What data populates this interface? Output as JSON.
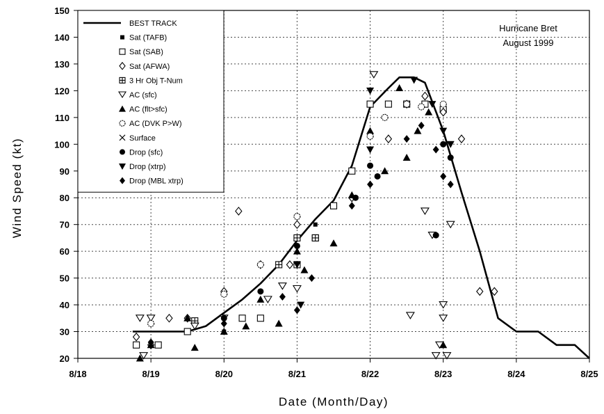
{
  "chart_data": {
    "type": "scatter",
    "title": "",
    "annotation": [
      "Hurricane Bret",
      "August 1999"
    ],
    "xlabel": "Date (Month/Day)",
    "ylabel": "Wind Speed (kt)",
    "xlim": [
      18,
      25
    ],
    "ylim": [
      20,
      150
    ],
    "x_tick_labels": [
      "8/18",
      "8/19",
      "8/20",
      "8/21",
      "8/22",
      "8/23",
      "8/24",
      "8/25"
    ],
    "y_ticks": [
      20,
      30,
      40,
      50,
      60,
      70,
      80,
      90,
      100,
      110,
      120,
      130,
      140,
      150
    ],
    "grid": true,
    "legend_position": "top-left",
    "series": [
      {
        "name": "BEST TRACK",
        "marker": "line",
        "points": [
          [
            18.75,
            30
          ],
          [
            19.0,
            30
          ],
          [
            19.25,
            30
          ],
          [
            19.5,
            30
          ],
          [
            19.75,
            32
          ],
          [
            20.0,
            37
          ],
          [
            20.25,
            42
          ],
          [
            20.5,
            48
          ],
          [
            20.75,
            55
          ],
          [
            21.0,
            64
          ],
          [
            21.25,
            72
          ],
          [
            21.5,
            79
          ],
          [
            21.75,
            92
          ],
          [
            22.0,
            114
          ],
          [
            22.25,
            121
          ],
          [
            22.4,
            125
          ],
          [
            22.6,
            125
          ],
          [
            22.75,
            123
          ],
          [
            23.0,
            105
          ],
          [
            23.25,
            82
          ],
          [
            23.5,
            60
          ],
          [
            23.75,
            35
          ],
          [
            24.0,
            30
          ],
          [
            24.3,
            30
          ],
          [
            24.55,
            25
          ],
          [
            24.8,
            25
          ],
          [
            25.0,
            20
          ]
        ]
      },
      {
        "name": "Sat (TAFB)",
        "marker": "small-square",
        "points": [
          [
            18.8,
            25
          ],
          [
            19.0,
            25
          ],
          [
            19.5,
            30
          ],
          [
            20.0,
            30
          ],
          [
            20.25,
            35
          ],
          [
            20.5,
            45
          ],
          [
            21.0,
            65
          ],
          [
            21.25,
            70
          ],
          [
            21.5,
            77
          ],
          [
            21.75,
            90
          ],
          [
            22.0,
            115
          ],
          [
            22.25,
            115
          ],
          [
            22.5,
            115
          ],
          [
            22.75,
            115
          ],
          [
            23.0,
            115
          ]
        ]
      },
      {
        "name": "Sat (SAB)",
        "marker": "open-square",
        "points": [
          [
            18.8,
            25
          ],
          [
            19.1,
            25
          ],
          [
            19.5,
            30
          ],
          [
            20.25,
            35
          ],
          [
            20.5,
            35
          ],
          [
            21.0,
            55
          ],
          [
            21.25,
            65
          ],
          [
            21.5,
            77
          ],
          [
            21.75,
            90
          ],
          [
            22.0,
            115
          ],
          [
            22.25,
            115
          ],
          [
            22.5,
            115
          ],
          [
            22.75,
            115
          ],
          [
            23.0,
            113
          ]
        ]
      },
      {
        "name": "Sat (AFWA)",
        "marker": "open-diamond",
        "points": [
          [
            18.8,
            28
          ],
          [
            19.0,
            25
          ],
          [
            19.25,
            35
          ],
          [
            19.5,
            35
          ],
          [
            20.0,
            45
          ],
          [
            20.2,
            75
          ],
          [
            20.5,
            55
          ],
          [
            20.9,
            55
          ],
          [
            21.0,
            70
          ],
          [
            21.75,
            80
          ],
          [
            22.25,
            102
          ],
          [
            22.5,
            115
          ],
          [
            22.75,
            118
          ],
          [
            23.0,
            112
          ],
          [
            23.25,
            102
          ],
          [
            23.5,
            45
          ],
          [
            23.7,
            45
          ]
        ]
      },
      {
        "name": "3 Hr Obj T-Num",
        "marker": "boxed-plus",
        "points": [
          [
            19.6,
            34
          ],
          [
            20.75,
            55
          ],
          [
            21.0,
            65
          ],
          [
            21.25,
            65
          ]
        ]
      },
      {
        "name": "AC (sfc)",
        "marker": "open-triangle-down",
        "points": [
          [
            18.85,
            35
          ],
          [
            19.0,
            35
          ],
          [
            18.9,
            21
          ],
          [
            19.6,
            32
          ],
          [
            20.0,
            35
          ],
          [
            20.6,
            42
          ],
          [
            20.8,
            47
          ],
          [
            21.0,
            46
          ],
          [
            22.05,
            126
          ],
          [
            22.55,
            36
          ],
          [
            22.75,
            75
          ],
          [
            22.85,
            66
          ],
          [
            22.9,
            21
          ],
          [
            23.05,
            21
          ],
          [
            22.95,
            25
          ],
          [
            23.0,
            40
          ],
          [
            23.0,
            35
          ],
          [
            23.1,
            70
          ]
        ]
      },
      {
        "name": "AC (flt>sfc)",
        "marker": "filled-triangle-up",
        "points": [
          [
            18.85,
            20
          ],
          [
            19.0,
            25
          ],
          [
            19.5,
            35
          ],
          [
            19.6,
            24
          ],
          [
            20.0,
            30
          ],
          [
            20.3,
            32
          ],
          [
            20.5,
            42
          ],
          [
            20.75,
            33
          ],
          [
            21.0,
            60
          ],
          [
            21.1,
            53
          ],
          [
            21.5,
            63
          ],
          [
            21.75,
            81
          ],
          [
            22.0,
            105
          ],
          [
            22.2,
            90
          ],
          [
            22.4,
            121
          ],
          [
            22.5,
            95
          ],
          [
            22.65,
            105
          ],
          [
            22.8,
            112
          ],
          [
            23.0,
            25
          ]
        ]
      },
      {
        "name": "AC (DVK P>W)",
        "marker": "open-circle",
        "points": [
          [
            19.0,
            33
          ],
          [
            20.0,
            44
          ],
          [
            20.5,
            55
          ],
          [
            21.0,
            73
          ],
          [
            22.0,
            103
          ],
          [
            22.2,
            110
          ],
          [
            22.5,
            115
          ],
          [
            22.7,
            114
          ],
          [
            23.0,
            115
          ]
        ]
      },
      {
        "name": "Drop (sfc)",
        "marker": "filled-circle",
        "points": [
          [
            20.0,
            35
          ],
          [
            20.5,
            45
          ],
          [
            21.0,
            62
          ],
          [
            21.8,
            80
          ],
          [
            22.0,
            92
          ],
          [
            22.1,
            88
          ],
          [
            22.9,
            66
          ],
          [
            23.0,
            100
          ],
          [
            23.1,
            95
          ]
        ]
      },
      {
        "name": "Drop (xtrp)",
        "marker": "filled-triangle-down",
        "points": [
          [
            21.0,
            55
          ],
          [
            21.05,
            40
          ],
          [
            22.0,
            98
          ],
          [
            22.0,
            120
          ],
          [
            22.6,
            124
          ],
          [
            22.85,
            115
          ],
          [
            23.0,
            105
          ],
          [
            23.1,
            100
          ]
        ]
      },
      {
        "name": "Drop (MBL xtrp)",
        "marker": "filled-diamond",
        "points": [
          [
            19.0,
            26
          ],
          [
            20.0,
            33
          ],
          [
            20.8,
            43
          ],
          [
            21.0,
            38
          ],
          [
            21.2,
            50
          ],
          [
            21.75,
            77
          ],
          [
            22.0,
            85
          ],
          [
            22.5,
            102
          ],
          [
            22.7,
            107
          ],
          [
            22.9,
            98
          ],
          [
            23.0,
            88
          ],
          [
            23.1,
            85
          ]
        ]
      }
    ]
  }
}
